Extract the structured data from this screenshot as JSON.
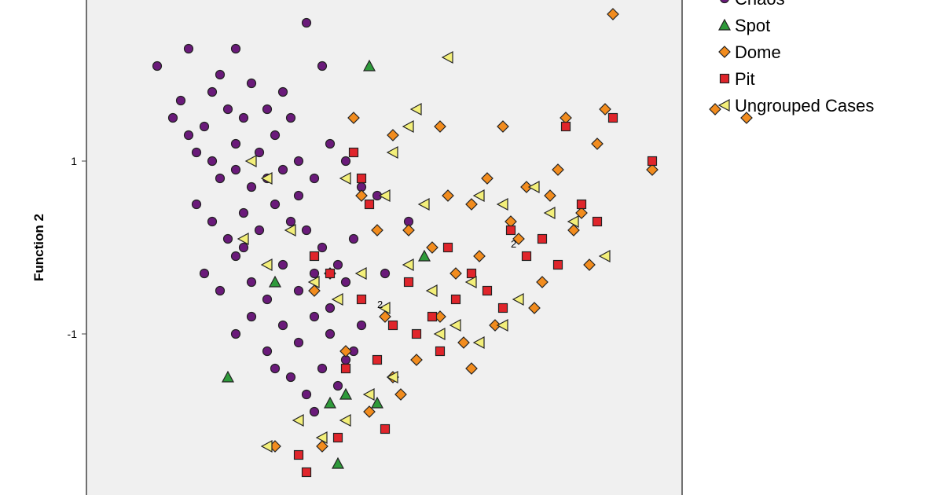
{
  "chart_data": {
    "type": "scatter",
    "title": "",
    "xlabel": "",
    "ylabel": "Function 2",
    "ylim": [
      -2.9,
      2.9
    ],
    "yticks": [
      1,
      -1
    ],
    "ytick_labels": [
      "1",
      "-1"
    ],
    "grid": false,
    "legend_position": "right",
    "legend_items": [
      "Chaos",
      "Spot",
      "Dome",
      "Pit",
      "Ungrouped Cases"
    ],
    "series": [
      {
        "name": "Chaos",
        "marker": "circle",
        "color": "#6a1a7a",
        "points": [
          [
            -2.0,
            2.1
          ],
          [
            -1.8,
            1.5
          ],
          [
            -1.7,
            1.7
          ],
          [
            -1.6,
            1.3
          ],
          [
            -1.5,
            1.1
          ],
          [
            -1.4,
            1.4
          ],
          [
            -1.3,
            1.8
          ],
          [
            -1.2,
            2.0
          ],
          [
            -1.1,
            1.6
          ],
          [
            -1.0,
            1.2
          ],
          [
            -0.9,
            1.5
          ],
          [
            -0.8,
            1.9
          ],
          [
            -0.7,
            1.1
          ],
          [
            -0.6,
            1.6
          ],
          [
            -0.5,
            1.3
          ],
          [
            -0.4,
            1.8
          ],
          [
            -0.3,
            1.5
          ],
          [
            -0.2,
            1.0
          ],
          [
            -1.3,
            1.0
          ],
          [
            -1.2,
            0.8
          ],
          [
            -1.0,
            0.9
          ],
          [
            -0.8,
            0.7
          ],
          [
            -0.6,
            0.8
          ],
          [
            -0.4,
            0.9
          ],
          [
            -0.2,
            0.6
          ],
          [
            0.0,
            0.8
          ],
          [
            0.2,
            1.2
          ],
          [
            0.4,
            1.0
          ],
          [
            0.6,
            0.7
          ],
          [
            -1.5,
            0.5
          ],
          [
            -1.3,
            0.3
          ],
          [
            -1.1,
            0.1
          ],
          [
            -0.9,
            0.4
          ],
          [
            -0.7,
            0.2
          ],
          [
            -0.5,
            0.5
          ],
          [
            -0.3,
            0.3
          ],
          [
            -0.1,
            0.2
          ],
          [
            0.1,
            0.0
          ],
          [
            0.3,
            -0.2
          ],
          [
            0.5,
            0.1
          ],
          [
            -1.4,
            -0.3
          ],
          [
            -1.2,
            -0.5
          ],
          [
            -1.0,
            -0.1
          ],
          [
            -0.8,
            -0.4
          ],
          [
            -0.6,
            -0.6
          ],
          [
            -0.4,
            -0.2
          ],
          [
            -0.2,
            -0.5
          ],
          [
            0.0,
            -0.3
          ],
          [
            0.2,
            -0.7
          ],
          [
            0.4,
            -0.4
          ],
          [
            -1.0,
            -1.0
          ],
          [
            -0.8,
            -0.8
          ],
          [
            -0.6,
            -1.2
          ],
          [
            -0.4,
            -0.9
          ],
          [
            -0.2,
            -1.1
          ],
          [
            0.0,
            -0.8
          ],
          [
            0.2,
            -1.0
          ],
          [
            0.4,
            -1.3
          ],
          [
            0.6,
            -0.9
          ],
          [
            -0.3,
            -1.5
          ],
          [
            -0.1,
            -1.7
          ],
          [
            0.1,
            -1.4
          ],
          [
            0.3,
            -1.6
          ],
          [
            0.5,
            -1.2
          ],
          [
            -0.1,
            2.6
          ],
          [
            0.1,
            2.1
          ],
          [
            -1.6,
            2.3
          ],
          [
            -1.0,
            2.3
          ],
          [
            0.8,
            0.6
          ],
          [
            1.2,
            0.3
          ],
          [
            0.9,
            -0.3
          ],
          [
            -0.9,
            0.0
          ],
          [
            -0.5,
            -1.4
          ],
          [
            0.0,
            -1.9
          ]
        ]
      },
      {
        "name": "Spot",
        "marker": "triangle",
        "color": "#2e9a3a",
        "points": [
          [
            0.7,
            2.1
          ],
          [
            1.4,
            -0.1
          ],
          [
            -0.5,
            -0.4
          ],
          [
            -1.1,
            -1.5
          ],
          [
            0.2,
            -1.8
          ],
          [
            0.4,
            -1.7
          ],
          [
            0.8,
            -1.8
          ],
          [
            0.3,
            -2.5
          ]
        ]
      },
      {
        "name": "Dome",
        "marker": "diamond",
        "color": "#f28c1e",
        "points": [
          [
            3.8,
            2.7
          ],
          [
            3.7,
            1.6
          ],
          [
            5.1,
            1.6
          ],
          [
            5.5,
            1.5
          ],
          [
            3.2,
            1.5
          ],
          [
            2.4,
            1.4
          ],
          [
            0.5,
            1.5
          ],
          [
            1.0,
            1.3
          ],
          [
            1.6,
            1.4
          ],
          [
            3.6,
            1.2
          ],
          [
            4.3,
            0.9
          ],
          [
            2.2,
            0.8
          ],
          [
            2.0,
            0.5
          ],
          [
            2.5,
            0.3
          ],
          [
            3.0,
            0.6
          ],
          [
            1.2,
            0.2
          ],
          [
            1.5,
            0.0
          ],
          [
            1.8,
            -0.3
          ],
          [
            2.1,
            -0.1
          ],
          [
            2.6,
            0.1
          ],
          [
            2.9,
            -0.4
          ],
          [
            3.3,
            0.2
          ],
          [
            3.5,
            -0.2
          ],
          [
            2.8,
            -0.7
          ],
          [
            2.3,
            -0.9
          ],
          [
            1.9,
            -1.1
          ],
          [
            1.6,
            -0.8
          ],
          [
            1.3,
            -1.3
          ],
          [
            1.0,
            -1.5
          ],
          [
            0.7,
            -1.9
          ],
          [
            0.4,
            -1.2
          ],
          [
            0.1,
            -2.3
          ],
          [
            -0.5,
            -2.3
          ],
          [
            0.2,
            -0.3
          ],
          [
            0.0,
            -0.5
          ],
          [
            0.6,
            0.6
          ],
          [
            0.8,
            0.2
          ],
          [
            2.7,
            0.7
          ],
          [
            3.1,
            0.9
          ],
          [
            3.4,
            0.4
          ],
          [
            1.7,
            0.6
          ],
          [
            2.0,
            -1.4
          ],
          [
            1.1,
            -1.7
          ],
          [
            0.9,
            -0.8
          ]
        ]
      },
      {
        "name": "Pit",
        "marker": "square",
        "color": "#e0252b",
        "points": [
          [
            3.2,
            1.4
          ],
          [
            3.8,
            1.5
          ],
          [
            4.3,
            1.0
          ],
          [
            0.5,
            1.1
          ],
          [
            0.6,
            0.8
          ],
          [
            0.7,
            0.5
          ],
          [
            3.4,
            0.5
          ],
          [
            3.6,
            0.3
          ],
          [
            2.5,
            0.2
          ],
          [
            2.7,
            -0.1
          ],
          [
            1.7,
            0.0
          ],
          [
            2.0,
            -0.3
          ],
          [
            2.2,
            -0.5
          ],
          [
            1.8,
            -0.6
          ],
          [
            1.5,
            -0.8
          ],
          [
            1.3,
            -1.0
          ],
          [
            1.0,
            -0.9
          ],
          [
            0.8,
            -1.3
          ],
          [
            0.6,
            -0.6
          ],
          [
            0.4,
            -1.4
          ],
          [
            0.2,
            -0.3
          ],
          [
            0.0,
            -0.1
          ],
          [
            2.4,
            -0.7
          ],
          [
            2.9,
            0.1
          ],
          [
            3.1,
            -0.2
          ],
          [
            1.6,
            -1.2
          ],
          [
            1.2,
            -0.4
          ],
          [
            0.3,
            -2.2
          ],
          [
            -0.2,
            -2.4
          ],
          [
            -0.1,
            -2.6
          ],
          [
            0.9,
            -2.1
          ]
        ]
      },
      {
        "name": "Ungrouped Cases",
        "marker": "triangle-left",
        "color": "#f3ef7a",
        "points": [
          [
            1.7,
            2.2
          ],
          [
            1.3,
            1.6
          ],
          [
            1.2,
            1.4
          ],
          [
            1.0,
            1.1
          ],
          [
            -0.8,
            1.0
          ],
          [
            -0.6,
            0.8
          ],
          [
            0.4,
            0.8
          ],
          [
            0.9,
            0.6
          ],
          [
            1.4,
            0.5
          ],
          [
            2.1,
            0.6
          ],
          [
            2.4,
            0.5
          ],
          [
            2.8,
            0.7
          ],
          [
            3.0,
            0.4
          ],
          [
            3.3,
            0.3
          ],
          [
            3.7,
            -0.1
          ],
          [
            -0.9,
            0.1
          ],
          [
            -0.6,
            -0.2
          ],
          [
            -0.3,
            0.2
          ],
          [
            0.0,
            -0.4
          ],
          [
            0.3,
            -0.6
          ],
          [
            0.6,
            -0.3
          ],
          [
            0.9,
            -0.7
          ],
          [
            1.2,
            -0.2
          ],
          [
            1.5,
            -0.5
          ],
          [
            1.8,
            -0.9
          ],
          [
            2.1,
            -1.1
          ],
          [
            2.4,
            -0.9
          ],
          [
            1.0,
            -1.5
          ],
          [
            0.7,
            -1.7
          ],
          [
            0.4,
            -2.0
          ],
          [
            0.1,
            -2.2
          ],
          [
            -0.2,
            -2.0
          ],
          [
            -0.6,
            -2.3
          ],
          [
            1.6,
            -1.0
          ],
          [
            2.0,
            -0.4
          ],
          [
            2.6,
            -0.6
          ]
        ]
      }
    ],
    "annotations": [
      {
        "text": "2",
        "x": 0.8,
        "y": -0.7
      },
      {
        "text": "2",
        "x": 2.5,
        "y": 0.0
      }
    ]
  }
}
